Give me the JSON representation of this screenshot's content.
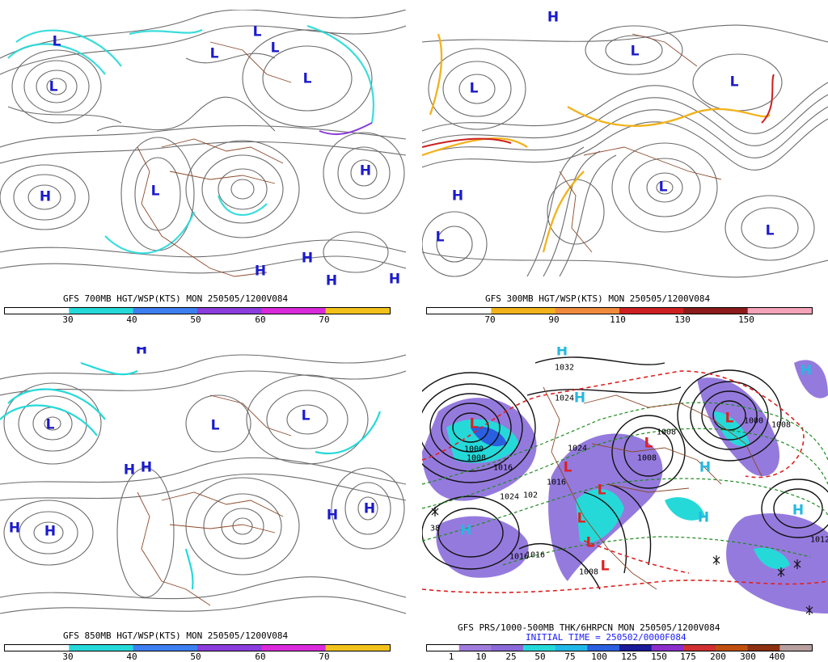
{
  "panels": [
    {
      "id": "p700",
      "title": "GFS 700MB HGT/WSP(KTS)  MON 250505/1200V084",
      "colorbar": {
        "colors": [
          "#ffffff",
          "#26d9d9",
          "#3d7ff0",
          "#8a3ddc",
          "#d92adb",
          "#f2c21b"
        ],
        "ticks": [
          "30",
          "40",
          "50",
          "60",
          "70"
        ]
      },
      "centers": [
        {
          "t": "L"
        },
        {
          "t": "L"
        },
        {
          "t": "L"
        },
        {
          "t": "L"
        },
        {
          "t": "L"
        },
        {
          "t": "L"
        },
        {
          "t": "H"
        },
        {
          "t": "L"
        },
        {
          "t": "H"
        },
        {
          "t": "H"
        },
        {
          "t": "H"
        },
        {
          "t": "H"
        },
        {
          "t": "H"
        }
      ]
    },
    {
      "id": "p300",
      "title": "GFS 300MB HGT/WSP(KTS)  MON 250505/1200V084",
      "colorbar": {
        "colors": [
          "#ffffff",
          "#f2b21b",
          "#f08a3d",
          "#cc2020",
          "#8b1a1a",
          "#f5a3b8"
        ],
        "ticks": [
          "70",
          "90",
          "110",
          "130",
          "150"
        ]
      },
      "centers": [
        {
          "t": "H"
        },
        {
          "t": "L"
        },
        {
          "t": "L"
        },
        {
          "t": "L"
        },
        {
          "t": "H"
        },
        {
          "t": "L"
        },
        {
          "t": "L"
        },
        {
          "t": "L"
        }
      ]
    },
    {
      "id": "p850",
      "title": "GFS 850MB HGT/WSP(KTS)  MON 250505/1200V084",
      "colorbar": {
        "colors": [
          "#ffffff",
          "#26d9d9",
          "#3d7ff0",
          "#8a3ddc",
          "#d92adb",
          "#f2c21b"
        ],
        "ticks": [
          "30",
          "40",
          "50",
          "60",
          "70"
        ]
      },
      "centers": [
        {
          "t": "H"
        },
        {
          "t": "L"
        },
        {
          "t": "L"
        },
        {
          "t": "L"
        },
        {
          "t": "H"
        },
        {
          "t": "H"
        },
        {
          "t": "H"
        },
        {
          "t": "H"
        },
        {
          "t": "H"
        },
        {
          "t": "H"
        }
      ]
    },
    {
      "id": "pprs",
      "title": "GFS PRS/1000-500MB THK/6HRPCN  MON 250505/1200V084",
      "subtitle": "INITIAL TIME = 250502/0000F084",
      "colorbar": {
        "colors": [
          "#ffffff",
          "#a07cdc",
          "#8a6ad8",
          "#26d9d9",
          "#20b8e8",
          "#2a5fe0",
          "#1a1a9a",
          "#8b2ecc",
          "#d03030",
          "#c05010",
          "#8b3010",
          "#b8a0a0"
        ],
        "ticks": [
          "1",
          "10",
          "25",
          "50",
          "75",
          "100",
          "125",
          "150",
          "175",
          "200",
          "300",
          "400"
        ]
      },
      "centers": [
        {
          "t": "H"
        },
        {
          "t": "H"
        },
        {
          "t": "L"
        },
        {
          "t": "H"
        },
        {
          "t": "L"
        },
        {
          "t": "L"
        },
        {
          "t": "H"
        },
        {
          "t": "H"
        },
        {
          "t": "L"
        },
        {
          "t": "L"
        },
        {
          "t": "L"
        },
        {
          "t": "L"
        },
        {
          "t": "H"
        },
        {
          "t": "H"
        },
        {
          "t": "L"
        }
      ],
      "contour_labels": [
        "1032",
        "1024",
        "1024",
        "1000",
        "1008",
        "1016",
        "1008",
        "1016",
        "1024",
        "102",
        "1016",
        "1008",
        "1000",
        "1008",
        "1012",
        "38",
        "1016",
        "1008"
      ]
    }
  ]
}
